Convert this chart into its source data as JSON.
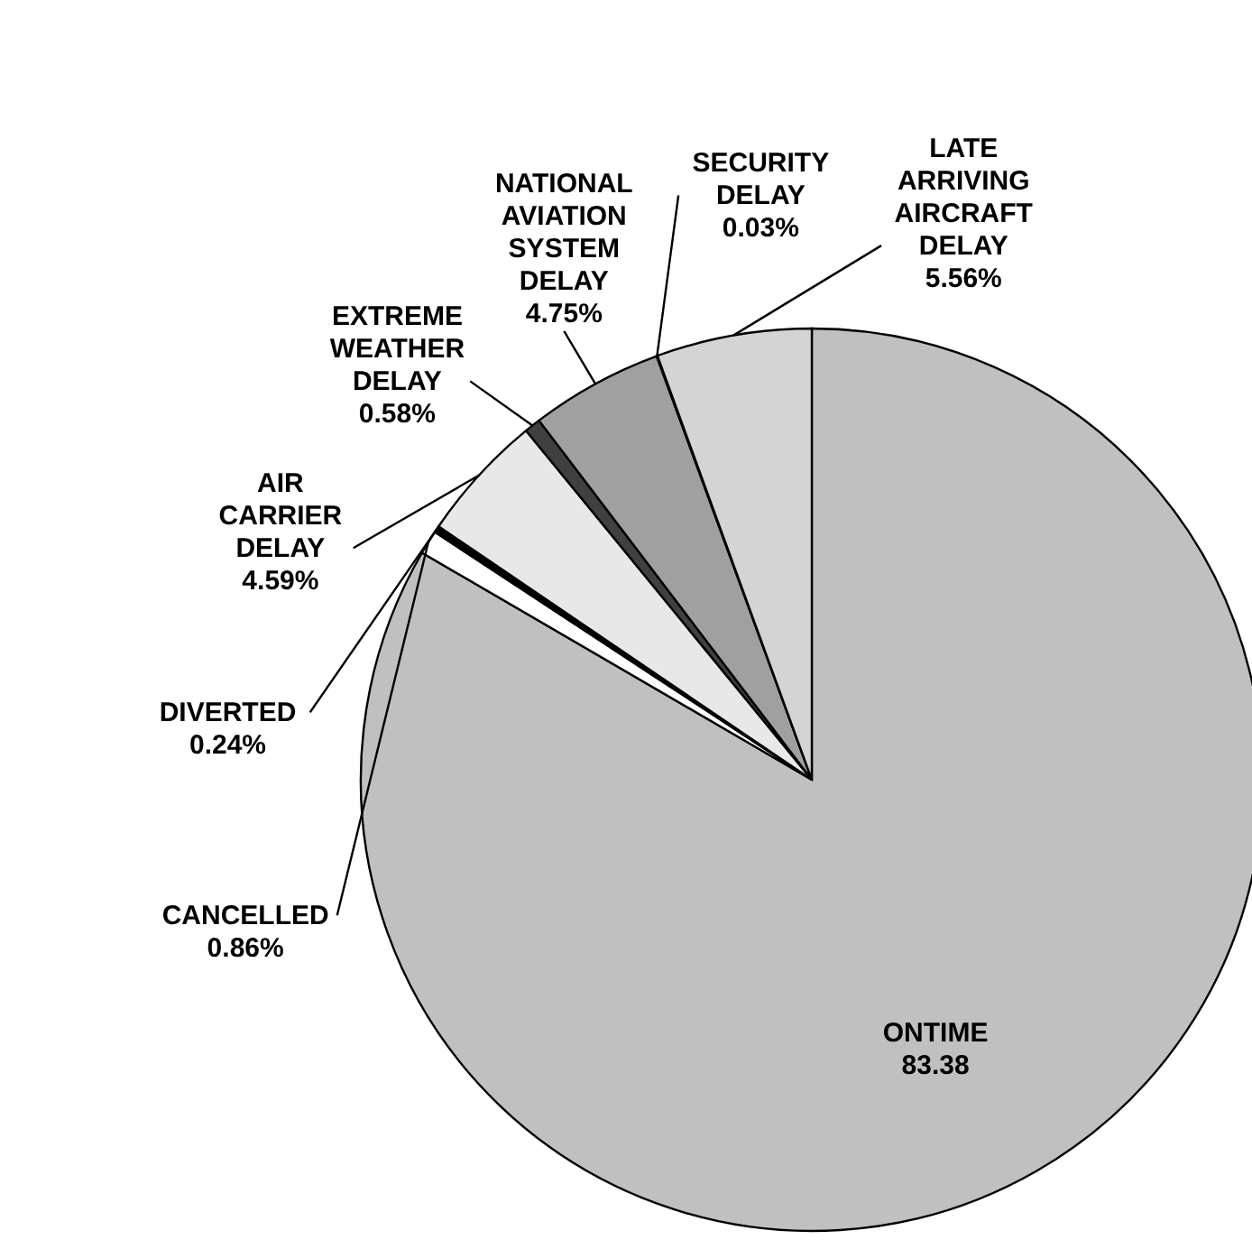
{
  "chart_data": {
    "type": "pie",
    "categories": [
      "ONTIME",
      "CANCELLED",
      "DIVERTED",
      "AIR CARRIER DELAY",
      "EXTREME WEATHER DELAY",
      "NATIONAL AVIATION SYSTEM DELAY",
      "SECURITY DELAY",
      "LATE ARRIVING AIRCRAFT DELAY"
    ],
    "values": [
      83.38,
      0.86,
      0.24,
      4.59,
      0.58,
      4.75,
      0.03,
      5.56
    ],
    "colors": [
      "#c0c0c0",
      "#ffffff",
      "#000000",
      "#e8e8e8",
      "#404040",
      "#a0a0a0",
      "#000000",
      "#d4d4d4"
    ],
    "value_labels": [
      "83.38",
      "0.86%",
      "0.24%",
      "4.59%",
      "0.58%",
      "4.75%",
      "0.03%",
      "5.56%"
    ]
  }
}
